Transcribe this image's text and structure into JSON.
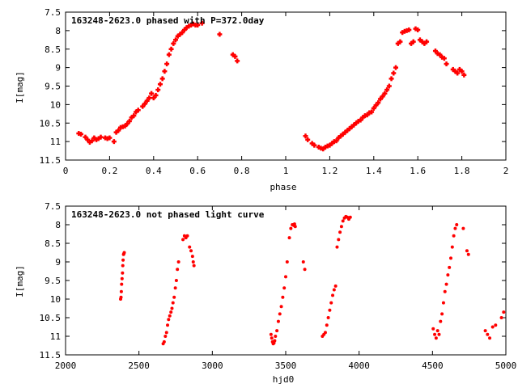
{
  "chart_data": [
    {
      "type": "scatter",
      "title": "163248-2623.0 phased with P=372.0day",
      "xlabel": "phase",
      "ylabel": "I[mag]",
      "xlim": [
        0,
        2
      ],
      "ylim": [
        11.5,
        7.5
      ],
      "y_inverted": true,
      "x_ticks": [
        0,
        0.2,
        0.4,
        0.6,
        0.8,
        1,
        1.2,
        1.4,
        1.6,
        1.8,
        2
      ],
      "y_ticks": [
        7.5,
        8,
        8.5,
        9,
        9.5,
        10,
        10.5,
        11,
        11.5
      ],
      "grid": false,
      "marker_color": "#ff0000",
      "marker": "cross",
      "series": [
        {
          "x": [
            0.06,
            0.07,
            0.09,
            0.1,
            0.11,
            0.12,
            0.13,
            0.14,
            0.15,
            0.16,
            0.18,
            0.19,
            0.2,
            0.22,
            0.23,
            0.24,
            0.25,
            0.26,
            0.27,
            0.28,
            0.29,
            0.3,
            0.31,
            0.32,
            0.33,
            0.35,
            0.36,
            0.37,
            0.38,
            0.39,
            0.4,
            0.41,
            0.42,
            0.43,
            0.44,
            0.45,
            0.46,
            0.47,
            0.48,
            0.49,
            0.5,
            0.51,
            0.52,
            0.53,
            0.54,
            0.55,
            0.56,
            0.57,
            0.58,
            0.59,
            0.6,
            0.62,
            0.7,
            0.76,
            0.77,
            0.78,
            1.09,
            1.1,
            1.12,
            1.13,
            1.15,
            1.16,
            1.17,
            1.18,
            1.19,
            1.2,
            1.21,
            1.22,
            1.23,
            1.24,
            1.25,
            1.26,
            1.27,
            1.28,
            1.29,
            1.3,
            1.31,
            1.32,
            1.33,
            1.34,
            1.35,
            1.36,
            1.37,
            1.38,
            1.39,
            1.4,
            1.41,
            1.42,
            1.43,
            1.44,
            1.45,
            1.46,
            1.47,
            1.48,
            1.49,
            1.5,
            1.51,
            1.52,
            1.53,
            1.54,
            1.55,
            1.56,
            1.57,
            1.58,
            1.59,
            1.6,
            1.61,
            1.62,
            1.63,
            1.64,
            1.68,
            1.69,
            1.7,
            1.71,
            1.72,
            1.73,
            1.76,
            1.77,
            1.78,
            1.79,
            1.8,
            1.81
          ],
          "y": [
            10.78,
            10.8,
            10.88,
            10.95,
            11.02,
            10.98,
            10.9,
            10.95,
            10.92,
            10.88,
            10.9,
            10.92,
            10.9,
            11,
            10.75,
            10.7,
            10.62,
            10.6,
            10.58,
            10.52,
            10.45,
            10.35,
            10.3,
            10.2,
            10.15,
            10.05,
            9.98,
            9.9,
            9.82,
            9.7,
            9.82,
            9.75,
            9.6,
            9.45,
            9.3,
            9.1,
            8.9,
            8.65,
            8.5,
            8.35,
            8.25,
            8.15,
            8.1,
            8.05,
            7.98,
            7.92,
            7.88,
            7.85,
            7.82,
            7.85,
            7.85,
            7.8,
            8.1,
            8.65,
            8.7,
            8.82,
            10.85,
            10.95,
            11.05,
            11.1,
            11.15,
            11.18,
            11.2,
            11.15,
            11.12,
            11.1,
            11.05,
            11,
            10.98,
            10.9,
            10.85,
            10.8,
            10.75,
            10.7,
            10.65,
            10.6,
            10.55,
            10.5,
            10.45,
            10.42,
            10.35,
            10.3,
            10.28,
            10.22,
            10.2,
            10.1,
            10.02,
            9.95,
            9.85,
            9.78,
            9.7,
            9.6,
            9.5,
            9.3,
            9.15,
            9,
            8.35,
            8.3,
            8.05,
            8.02,
            8,
            7.98,
            8.35,
            8.3,
            7.95,
            7.98,
            8.25,
            8.3,
            8.35,
            8.3,
            8.55,
            8.62,
            8.65,
            8.72,
            8.75,
            8.9,
            9.05,
            9.1,
            9.15,
            9.05,
            9.1,
            9.2
          ]
        }
      ]
    },
    {
      "type": "scatter",
      "title": "163248-2623.0 not phased light curve",
      "xlabel": "hjd0",
      "ylabel": "I[mag]",
      "xlim": [
        2000,
        5000
      ],
      "ylim": [
        11.5,
        7.5
      ],
      "y_inverted": true,
      "x_ticks": [
        2000,
        2500,
        3000,
        3500,
        4000,
        4500,
        5000
      ],
      "y_ticks": [
        7.5,
        8,
        8.5,
        9,
        9.5,
        10,
        10.5,
        11,
        11.5
      ],
      "grid": false,
      "marker_color": "#ff0000",
      "marker": "dot",
      "series": [
        {
          "x": [
            2375,
            2378,
            2380,
            2382,
            2385,
            2388,
            2390,
            2392,
            2395,
            2397,
            2400,
            2665,
            2672,
            2680,
            2688,
            2695,
            2702,
            2710,
            2718,
            2725,
            2732,
            2740,
            2748,
            2755,
            2762,
            2770,
            2800,
            2810,
            2820,
            2830,
            2845,
            2855,
            2865,
            2870,
            2875,
            3400,
            3405,
            3410,
            3415,
            3420,
            3425,
            3430,
            3440,
            3450,
            3460,
            3470,
            3480,
            3490,
            3500,
            3510,
            3525,
            3535,
            3545,
            3555,
            3560,
            3565,
            3620,
            3630,
            3750,
            3760,
            3770,
            3780,
            3790,
            3800,
            3810,
            3820,
            3830,
            3840,
            3850,
            3860,
            3870,
            3880,
            3890,
            3900,
            3910,
            3920,
            3930,
            3940,
            4505,
            4515,
            4525,
            4535,
            4545,
            4555,
            4565,
            4575,
            4585,
            4595,
            4605,
            4615,
            4625,
            4635,
            4645,
            4655,
            4665,
            4710,
            4735,
            4745,
            4860,
            4875,
            4890,
            4910,
            4930,
            4970,
            4985
          ],
          "y": [
            10,
            9.95,
            9.8,
            9.6,
            9.45,
            9.3,
            9.1,
            8.95,
            8.8,
            8.78,
            8.75,
            11.2,
            11.15,
            11,
            10.9,
            10.7,
            10.55,
            10.45,
            10.35,
            10.25,
            10.1,
            9.95,
            9.7,
            9.5,
            9.2,
            9,
            8.4,
            8.3,
            8.35,
            8.3,
            8.6,
            8.7,
            8.85,
            9,
            9.1,
            10.95,
            11.05,
            11.15,
            11.2,
            11.18,
            11.12,
            11,
            10.85,
            10.6,
            10.4,
            10.2,
            9.95,
            9.7,
            9.4,
            9.0,
            8.35,
            8.1,
            8.0,
            8.02,
            7.98,
            8.05,
            9,
            9.2,
            11,
            10.95,
            10.9,
            10.7,
            10.5,
            10.3,
            10.1,
            9.9,
            9.75,
            9.65,
            8.6,
            8.4,
            8.2,
            8.05,
            7.9,
            7.82,
            7.78,
            7.8,
            7.85,
            7.8,
            10.8,
            10.95,
            11.05,
            10.85,
            10.95,
            10.6,
            10.4,
            10.1,
            9.8,
            9.6,
            9.35,
            9.15,
            8.9,
            8.6,
            8.3,
            8.1,
            8.0,
            8.1,
            8.7,
            8.8,
            10.85,
            10.95,
            11.05,
            10.75,
            10.7,
            10.5,
            10.35
          ]
        }
      ]
    }
  ]
}
